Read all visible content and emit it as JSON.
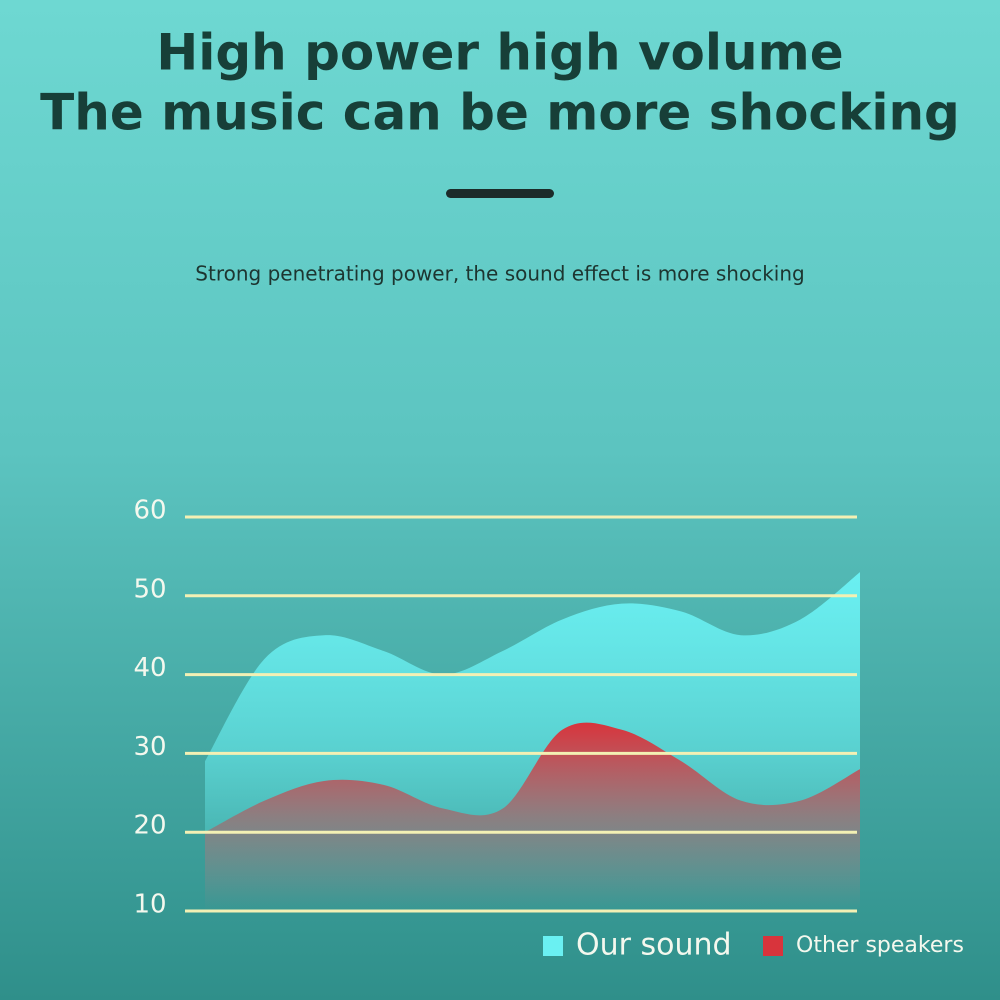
{
  "chart_data": {
    "type": "area",
    "title": [
      "High power high volume",
      "The music can be more shocking"
    ],
    "subtitle": "Strong penetrating power, the sound effect is more shocking",
    "categories": [
      null,
      null,
      null,
      null,
      null,
      null,
      null,
      null,
      null,
      null,
      null,
      null
    ],
    "series": [
      {
        "name": "Our sound",
        "color": "#6af0f2",
        "values": [
          29,
          42,
          45,
          43,
          40,
          43,
          47,
          49,
          48,
          45,
          47,
          53
        ]
      },
      {
        "name": "Other speakers",
        "color": "#d8343c",
        "values": [
          20,
          24,
          26.5,
          26,
          23,
          23,
          33,
          33,
          29,
          24,
          24,
          28
        ]
      }
    ],
    "ylim": [
      10,
      60
    ],
    "yticks": [
      10,
      20,
      30,
      40,
      50,
      60
    ],
    "grid": true,
    "legend": "bottom-right"
  }
}
